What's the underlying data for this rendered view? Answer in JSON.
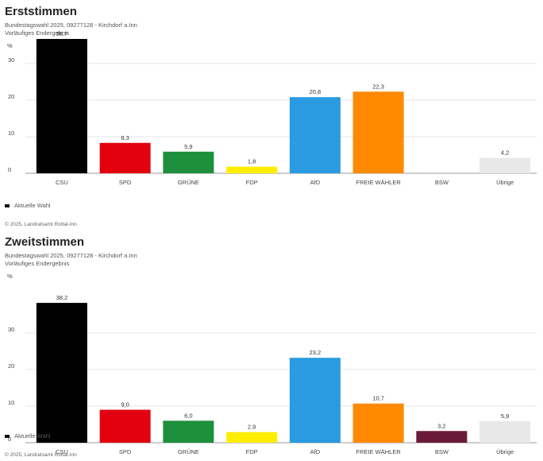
{
  "chart_data": [
    {
      "type": "bar",
      "title": "Erststimmen",
      "subtitle_1": "Bundestagswahl 2025, 09277128 - Kirchdorf a.Inn",
      "subtitle_2": "Vorläufiges Endergebnis",
      "ylabel": "%",
      "ylim": [
        0,
        38
      ],
      "yticks": [
        "0",
        "10",
        "20",
        "30"
      ],
      "categories": [
        "CSU",
        "SPD",
        "GRÜNE",
        "FDP",
        "AfD",
        "FREIE WÄHLER",
        "BSW",
        "Übrige"
      ],
      "values": [
        36.7,
        8.3,
        5.9,
        1.8,
        20.8,
        22.3,
        null,
        4.2
      ],
      "value_labels": [
        "36,7",
        "8,3",
        "5,9",
        "1,8",
        "20,8",
        "22,3",
        "",
        "4,2"
      ],
      "colors": [
        "#000000",
        "#e3000f",
        "#1e8f3c",
        "#ffed00",
        "#2a9be0",
        "#ff8a00",
        "#6b1a3a",
        "#e8e8e8"
      ],
      "legend": "Aktuelle Wahl",
      "copyright": "© 2025, Landratsamt Rottal-Inn"
    },
    {
      "type": "bar",
      "title": "Zweitstimmen",
      "subtitle_1": "Bundestagswahl 2025, 09277128 - Kirchdorf a.Inn",
      "subtitle_2": "Vorläufiges Endergebnis",
      "ylabel": "%",
      "ylim": [
        0,
        38
      ],
      "yticks": [
        "0",
        "10",
        "20",
        "30"
      ],
      "categories": [
        "CSU",
        "SPD",
        "GRÜNE",
        "FDP",
        "AfD",
        "FREIE WÄHLER",
        "BSW",
        "Übrige"
      ],
      "values": [
        38.2,
        9.0,
        6.0,
        2.9,
        23.2,
        10.7,
        3.2,
        5.9
      ],
      "value_labels": [
        "38,2",
        "9,0",
        "6,0",
        "2,9",
        "23,2",
        "10,7",
        "3,2",
        "5,9"
      ],
      "colors": [
        "#000000",
        "#e3000f",
        "#1e8f3c",
        "#ffed00",
        "#2a9be0",
        "#ff8a00",
        "#6b1a3a",
        "#e8e8e8"
      ],
      "legend": "Aktuelle Wahl",
      "copyright": "© 2025, Landratsamt Rottal-Inn"
    }
  ]
}
